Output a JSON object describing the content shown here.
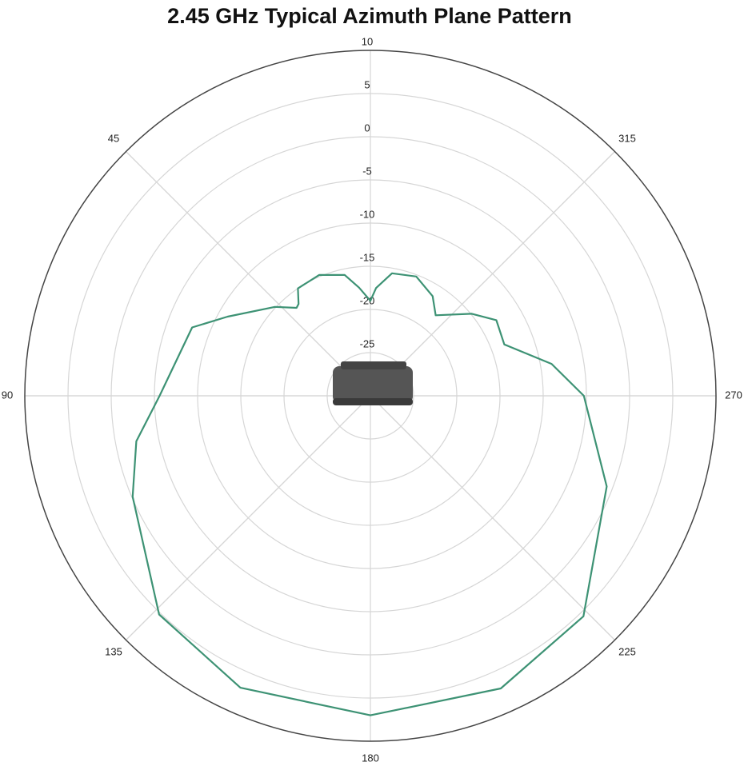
{
  "chart_data": {
    "type": "polar",
    "title": "2.45 GHz Typical Azimuth Plane Pattern",
    "theta": [
      0,
      6,
      12,
      23,
      34,
      38,
      40,
      47,
      61,
      69,
      90,
      101,
      113,
      136,
      156,
      180,
      204,
      224,
      249,
      270,
      280,
      291,
      301,
      309,
      321,
      328,
      339,
      350,
      357
    ],
    "series": [
      {
        "color": "#3d9274",
        "values": [
          -19,
          -17.4,
          -15.7,
          -14.8,
          -15,
          -16.5,
          -16.7,
          -14.9,
          -11.1,
          -7.9,
          -5.6,
          -2.4,
          -0.1,
          5.2,
          7,
          7,
          7.1,
          5.5,
          -0.7,
          -5.3,
          -8.7,
          -13.4,
          -13,
          -14.9,
          -18,
          -16.4,
          -15.2,
          -15.6,
          -17.5
        ]
      }
    ],
    "rlim": [
      -30,
      10
    ],
    "rticks": [
      -25,
      -20,
      -15,
      -10,
      -5,
      0,
      5,
      10
    ],
    "thetaticks": [
      45,
      90,
      135,
      180,
      225,
      270,
      315
    ],
    "grid": true
  }
}
